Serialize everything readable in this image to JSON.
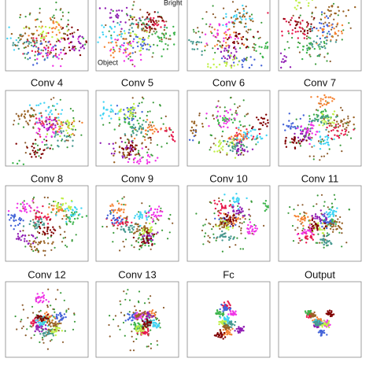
{
  "figure": {
    "labels": [
      "Conv 4",
      "Conv 5",
      "Conv 6",
      "Conv 7",
      "Conv 8",
      "Conv 9",
      "Conv 10",
      "Conv 11",
      "Conv 12",
      "Conv 13",
      "Fc",
      "Output"
    ],
    "annotations": {
      "bright": "Bright",
      "object": "Object"
    }
  }
}
